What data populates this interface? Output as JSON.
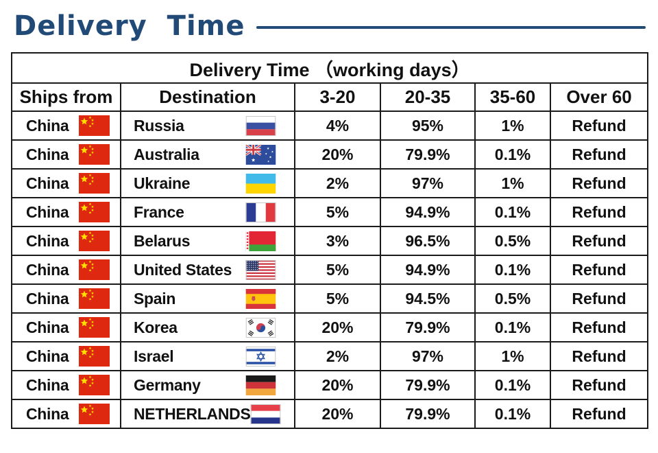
{
  "title": "Delivery Time",
  "accent_color": "#214a77",
  "border_color": "#1a1a1a",
  "table": {
    "caption": "Delivery Time （working days）",
    "columns": [
      "Ships from",
      "Destination",
      "3-20",
      "20-35",
      "35-60",
      "Over 60"
    ],
    "rows": [
      {
        "ships_from": "China",
        "ships_flag": "china",
        "destination": "Russia",
        "destination_flag": "russia",
        "pct_3_20": "4%",
        "pct_20_35": "95%",
        "pct_35_60": "1%",
        "over_60": "Refund"
      },
      {
        "ships_from": "China",
        "ships_flag": "china",
        "destination": "Australia",
        "destination_flag": "australia",
        "pct_3_20": "20%",
        "pct_20_35": "79.9%",
        "pct_35_60": "0.1%",
        "over_60": "Refund"
      },
      {
        "ships_from": "China",
        "ships_flag": "china",
        "destination": "Ukraine",
        "destination_flag": "ukraine",
        "pct_3_20": "2%",
        "pct_20_35": "97%",
        "pct_35_60": "1%",
        "over_60": "Refund"
      },
      {
        "ships_from": "China",
        "ships_flag": "china",
        "destination": "France",
        "destination_flag": "france",
        "pct_3_20": "5%",
        "pct_20_35": "94.9%",
        "pct_35_60": "0.1%",
        "over_60": "Refund"
      },
      {
        "ships_from": "China",
        "ships_flag": "china",
        "destination": "Belarus",
        "destination_flag": "belarus",
        "pct_3_20": "3%",
        "pct_20_35": "96.5%",
        "pct_35_60": "0.5%",
        "over_60": "Refund"
      },
      {
        "ships_from": "China",
        "ships_flag": "china",
        "destination": "United States",
        "destination_flag": "usa",
        "pct_3_20": "5%",
        "pct_20_35": "94.9%",
        "pct_35_60": "0.1%",
        "over_60": "Refund"
      },
      {
        "ships_from": "China",
        "ships_flag": "china",
        "destination": "Spain",
        "destination_flag": "spain",
        "pct_3_20": "5%",
        "pct_20_35": "94.5%",
        "pct_35_60": "0.5%",
        "over_60": "Refund"
      },
      {
        "ships_from": "China",
        "ships_flag": "china",
        "destination": "Korea",
        "destination_flag": "korea",
        "pct_3_20": "20%",
        "pct_20_35": "79.9%",
        "pct_35_60": "0.1%",
        "over_60": "Refund"
      },
      {
        "ships_from": "China",
        "ships_flag": "china",
        "destination": "Israel",
        "destination_flag": "israel",
        "pct_3_20": "2%",
        "pct_20_35": "97%",
        "pct_35_60": "1%",
        "over_60": "Refund"
      },
      {
        "ships_from": "China",
        "ships_flag": "china",
        "destination": "Germany",
        "destination_flag": "germany",
        "pct_3_20": "20%",
        "pct_20_35": "79.9%",
        "pct_35_60": "0.1%",
        "over_60": "Refund"
      },
      {
        "ships_from": "China",
        "ships_flag": "china",
        "destination": "NETHERLANDS",
        "destination_flag": "netherlands",
        "pct_3_20": "20%",
        "pct_20_35": "79.9%",
        "pct_35_60": "0.1%",
        "over_60": "Refund"
      }
    ]
  }
}
